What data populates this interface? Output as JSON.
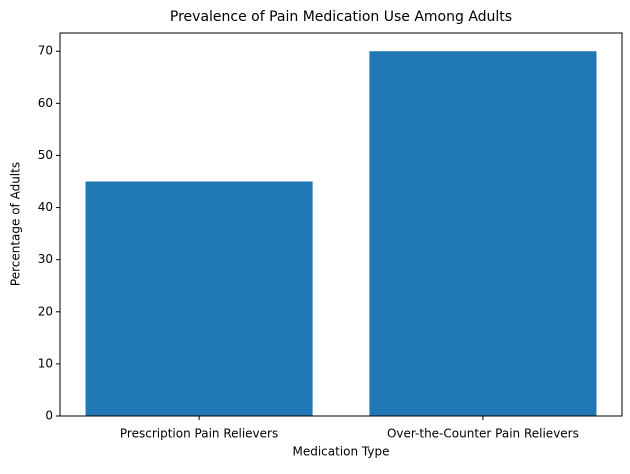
{
  "chart_data": {
    "type": "bar",
    "title": "Prevalence of Pain Medication Use Among Adults",
    "x_label": "Medication Type",
    "y_label": "Percentage of Adults",
    "categories": [
      "Prescription Pain Relievers",
      "Over-the-Counter Pain Relievers"
    ],
    "values": [
      45,
      70
    ],
    "color": "#1f77b4",
    "ylim": [
      0,
      73.5
    ],
    "yticks": [
      0,
      10,
      20,
      30,
      40,
      50,
      60,
      70
    ],
    "grid": false
  }
}
